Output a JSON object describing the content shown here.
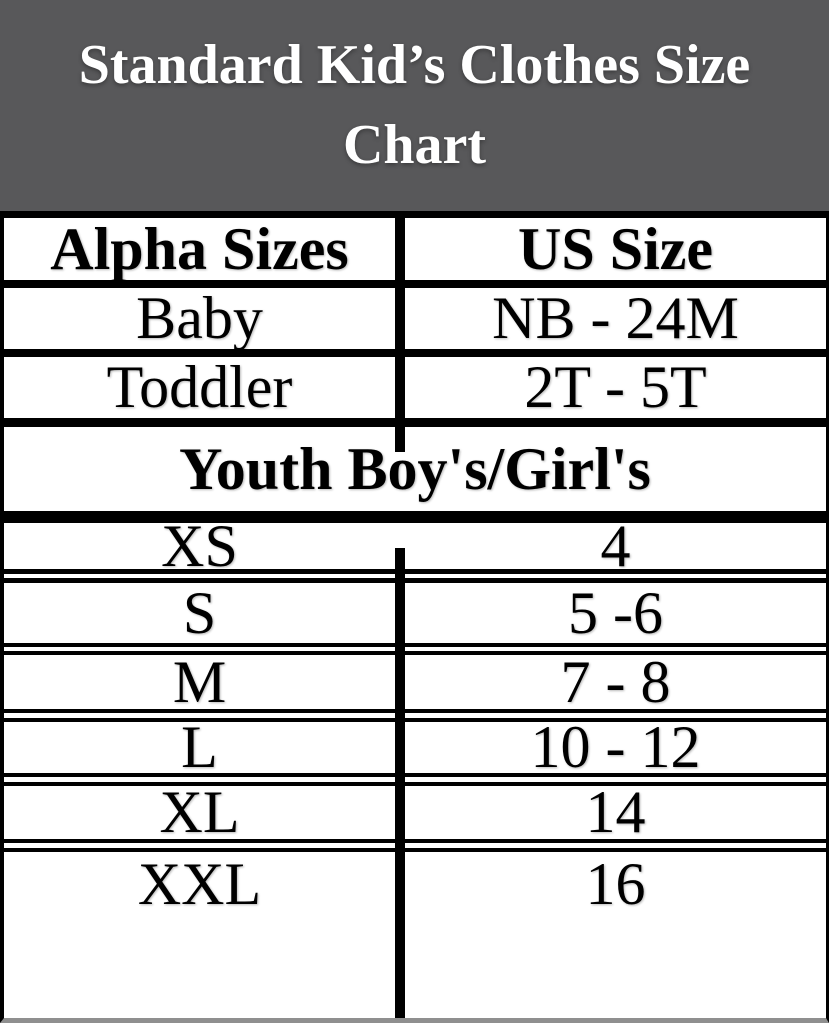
{
  "colors": {
    "banner_bg": "#58585a",
    "banner_text": "#ffffff",
    "border": "#000000",
    "cell_bg": "#ffffff",
    "cell_text": "#000000",
    "bottom_edge": "#8f8f8f"
  },
  "chart_data": {
    "type": "table",
    "title": "Standard Kid’s Clothes Size Chart",
    "columns": [
      "Alpha Sizes",
      "US Size"
    ],
    "upper_rows": [
      [
        "Baby",
        "NB - 24M"
      ],
      [
        "Toddler",
        "2T - 5T"
      ]
    ],
    "section_header": "Youth Boy's/Girl's",
    "lower_rows": [
      [
        "XS",
        "4"
      ],
      [
        "S",
        "5 -6"
      ],
      [
        "M",
        "7 - 8"
      ],
      [
        "L",
        "10 - 12"
      ],
      [
        "XL",
        "14"
      ],
      [
        "XXL",
        "16"
      ]
    ]
  }
}
